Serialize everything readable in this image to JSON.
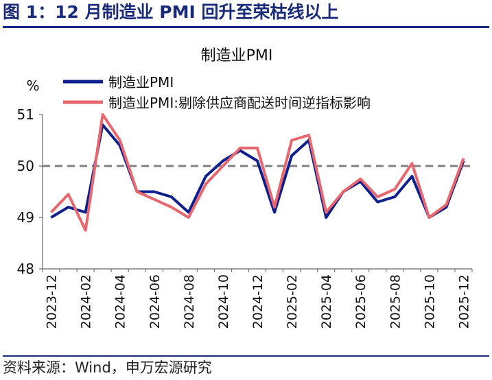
{
  "figure_title": "图 1：12 月制造业 PMI 回升至荣枯线以上",
  "source": "资料来源：Wind，申万宏源研究",
  "colors": {
    "title": "#1a2a7a",
    "series_pmi": "#0d1f8c",
    "series_adj": "#e8666e",
    "ref_line": "#808080"
  },
  "chart_data": {
    "type": "line",
    "title": "制造业PMI",
    "unit_label": "%",
    "ylim": [
      48,
      51
    ],
    "yticks": [
      48,
      49,
      50,
      51
    ],
    "x": [
      "2023-12",
      "2024-01",
      "2024-02",
      "2024-03",
      "2024-04",
      "2024-05",
      "2024-06",
      "2024-07",
      "2024-08",
      "2024-09",
      "2024-10",
      "2024-11",
      "2024-12",
      "2025-01",
      "2025-02",
      "2025-03",
      "2025-04",
      "2025-05",
      "2025-06",
      "2025-07",
      "2025-08",
      "2025-09",
      "2025-10",
      "2025-11",
      "2025-12"
    ],
    "xtick_labels": [
      "2023-12",
      "2024-02",
      "2024-04",
      "2024-06",
      "2024-08",
      "2024-10",
      "2024-12",
      "2025-02",
      "2025-04",
      "2025-06",
      "2025-08",
      "2025-10",
      "2025-12"
    ],
    "reference_line": 50,
    "legend_position": "top-left",
    "series": [
      {
        "name": "制造业PMI",
        "color": "#0d1f8c",
        "values": [
          49.0,
          49.2,
          49.1,
          50.8,
          50.4,
          49.5,
          49.5,
          49.4,
          49.1,
          49.8,
          50.1,
          50.3,
          50.1,
          49.1,
          50.2,
          50.5,
          49.0,
          49.5,
          49.7,
          49.3,
          49.4,
          49.8,
          49.0,
          49.2,
          50.1
        ]
      },
      {
        "name": "制造业PMI:剔除供应商配送时间逆指标影响",
        "color": "#e8666e",
        "values": [
          49.1,
          49.45,
          48.75,
          51.0,
          50.5,
          49.5,
          49.35,
          49.2,
          49.0,
          49.65,
          50.0,
          50.35,
          50.35,
          49.2,
          50.5,
          50.6,
          49.1,
          49.5,
          49.75,
          49.4,
          49.55,
          50.05,
          49.0,
          49.25,
          50.15
        ]
      }
    ]
  }
}
